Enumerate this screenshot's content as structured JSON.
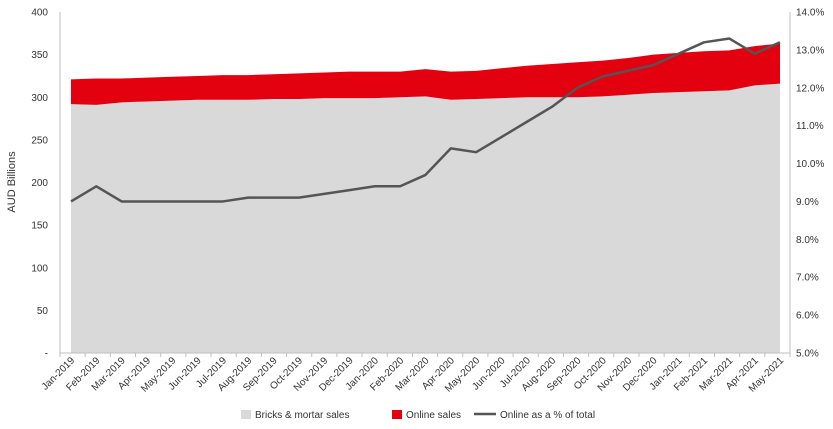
{
  "chart_data": {
    "type": "area",
    "categories": [
      "Jan-2019",
      "Feb-2019",
      "Mar-2019",
      "Apr-2019",
      "May-2019",
      "Jun-2019",
      "Jul-2019",
      "Aug-2019",
      "Sep-2019",
      "Oct-2019",
      "Nov-2019",
      "Dec-2019",
      "Jan-2020",
      "Feb-2020",
      "Mar-2020",
      "Apr-2020",
      "May-2020",
      "Jun-2020",
      "Jul-2020",
      "Aug-2020",
      "Sep-2020",
      "Oct-2020",
      "Nov-2020",
      "Dec-2020",
      "Jan-2021",
      "Feb-2021",
      "Mar-2021",
      "Apr-2021",
      "May-2021"
    ],
    "ylabel": "AUD Billions",
    "ylim": [
      0,
      400
    ],
    "y_ticks": [
      "-",
      "50",
      "100",
      "150",
      "200",
      "250",
      "300",
      "350",
      "400"
    ],
    "y2lim": [
      5.0,
      14.0
    ],
    "y2_ticks": [
      "5.0%",
      "6.0%",
      "7.0%",
      "8.0%",
      "9.0%",
      "10.0%",
      "11.0%",
      "12.0%",
      "13.0%",
      "14.0%"
    ],
    "series": [
      {
        "name": "Bricks & mortar sales",
        "kind": "stacked-area",
        "color": "#d9d9d9",
        "values": [
          292,
          291,
          294,
          295,
          296,
          297,
          297,
          297,
          298,
          298,
          299,
          299,
          299,
          300,
          301,
          297,
          298,
          299,
          300,
          300,
          300,
          301,
          303,
          305,
          306,
          307,
          308,
          314,
          316
        ]
      },
      {
        "name": "Online sales",
        "kind": "stacked-area",
        "color": "#e3000f",
        "values": [
          29,
          31,
          28,
          28,
          28,
          28,
          29,
          29,
          29,
          30,
          30,
          31,
          31,
          30,
          32,
          33,
          33,
          35,
          37,
          39,
          41,
          42,
          43,
          45,
          46,
          47,
          47,
          46,
          47
        ]
      },
      {
        "name": "Online as a % of total",
        "kind": "line",
        "axis": "right",
        "color": "#555555",
        "values": [
          9.0,
          9.4,
          9.0,
          9.0,
          9.0,
          9.0,
          9.0,
          9.1,
          9.1,
          9.1,
          9.2,
          9.3,
          9.4,
          9.4,
          9.7,
          10.4,
          10.3,
          10.7,
          11.1,
          11.5,
          12.0,
          12.3,
          12.45,
          12.6,
          12.9,
          13.2,
          13.3,
          12.9,
          13.2
        ]
      }
    ],
    "legend": "bottom-center",
    "grid": false
  }
}
